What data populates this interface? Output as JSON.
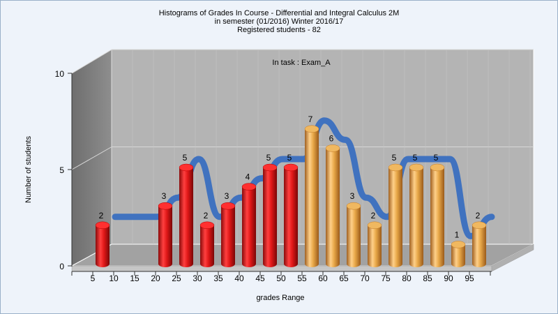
{
  "chart_data": {
    "type": "bar",
    "title": "Histograms of Grades  In Course - Differential and Integral Calculus 2M",
    "subtitle": "in semester  (01/2016) Winter 2016/17",
    "subtitle2": "Registered students - 82",
    "annotation": "In task : Exam_A",
    "xlabel": "grades Range",
    "ylabel": "Number of students",
    "ylim": [
      0,
      10
    ],
    "yticks": [
      "0",
      "5",
      "10"
    ],
    "categories": [
      "5",
      "10",
      "15",
      "20",
      "25",
      "30",
      "35",
      "40",
      "45",
      "50",
      "55",
      "60",
      "65",
      "70",
      "75",
      "80",
      "85",
      "90",
      "95"
    ],
    "values": [
      2,
      null,
      null,
      3,
      5,
      2,
      3,
      4,
      5,
      5,
      7,
      6,
      3,
      2,
      5,
      5,
      5,
      1,
      2
    ],
    "bar_colors": {
      "fail": "#e01818",
      "pass": "#e8a848"
    },
    "pass_threshold": 55,
    "trend_color": "#3a6fc0",
    "grid": true,
    "legend": "none"
  }
}
